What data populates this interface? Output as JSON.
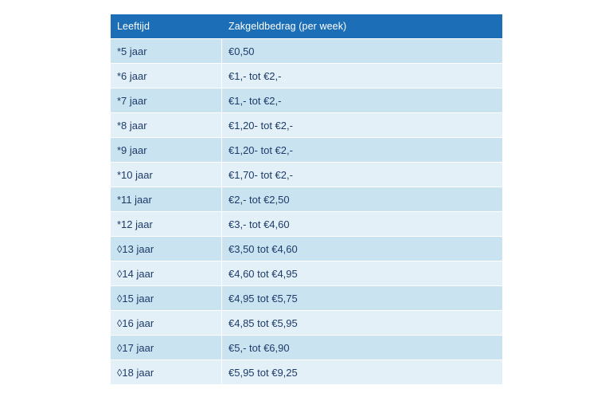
{
  "table": {
    "headers": [
      "Leeftijd",
      "Zakgeldbedrag (per week)"
    ],
    "rows": [
      [
        "*5 jaar",
        "€0,50"
      ],
      [
        "*6 jaar",
        "€1,- tot €2,-"
      ],
      [
        "*7 jaar",
        "€1,- tot €2,-"
      ],
      [
        "*8 jaar",
        "€1,20- tot €2,-"
      ],
      [
        "*9 jaar",
        "€1,20- tot €2,-"
      ],
      [
        "*10 jaar",
        "€1,70- tot €2,-"
      ],
      [
        "*11 jaar",
        "€2,- tot €2,50"
      ],
      [
        "*12 jaar",
        "€3,- tot €4,60"
      ],
      [
        "◊13 jaar",
        "€3,50 tot €4,60"
      ],
      [
        "◊14 jaar",
        "€4,60 tot €4,95"
      ],
      [
        "◊15 jaar",
        "€4,95 tot €5,75"
      ],
      [
        "◊16 jaar",
        "€4,85 tot €5,95"
      ],
      [
        "◊17 jaar",
        "€5,- tot €6,90"
      ],
      [
        "◊18 jaar",
        "€5,95 tot €9,25"
      ]
    ]
  },
  "colors": {
    "header_bg": "#1c6fb6",
    "row_dark": "#c9e3f1",
    "row_light": "#e3f0f8",
    "text": "#1d3b68"
  }
}
